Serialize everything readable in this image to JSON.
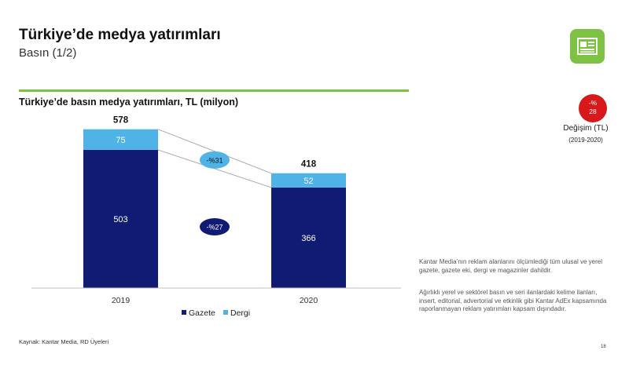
{
  "header": {
    "title": "Türkiye’de medya yatırımları",
    "subtitle": "Basın (1/2)",
    "icon": "newspaper-icon",
    "accent_color": "#7dc243"
  },
  "chart_data": {
    "type": "bar",
    "stacked": true,
    "title": "Türkiye’de basın medya yatırımları, TL (milyon)",
    "categories": [
      "2019",
      "2020"
    ],
    "series": [
      {
        "name": "Gazete",
        "values": [
          503,
          366
        ],
        "color": "#101c73"
      },
      {
        "name": "Dergi",
        "values": [
          75,
          52
        ],
        "color": "#4fb3e8"
      }
    ],
    "totals": [
      "578",
      "418"
    ],
    "annotations": [
      {
        "label": "-%31",
        "series": "Dergi",
        "style": "light-ellipse"
      },
      {
        "label": "-%27",
        "series": "Gazete",
        "style": "dark-ellipse"
      }
    ],
    "legend": "bottom",
    "ylim": [
      0,
      620
    ],
    "grid": false
  },
  "change": {
    "badge_line1": "-%",
    "badge_line2": "28",
    "label": "Değişim (TL)",
    "period": "(2019-2020)",
    "color": "#d7191c"
  },
  "notes": {
    "p1": "Kantar Media’nın reklam alanlarını ölçümlediği tüm ulusal ve yerel gazete, gazete eki, dergi ve magazinler dahildir.",
    "p2": "Ağırlıklı yerel ve sektörel basın ve seri ilanlardaki kelime ilanları, insert, editorial, advertorial ve etkinlik gibi Kantar AdEx kapsamında raporlanmayan reklam yatırımları kapsam dışındadır."
  },
  "footer": {
    "source": "Kaynak: Kantar Media, RD Üyeleri",
    "page": "18"
  }
}
